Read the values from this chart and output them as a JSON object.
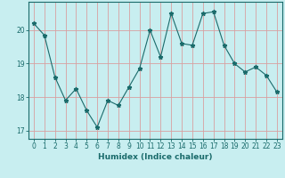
{
  "x": [
    0,
    1,
    2,
    3,
    4,
    5,
    6,
    7,
    8,
    9,
    10,
    11,
    12,
    13,
    14,
    15,
    16,
    17,
    18,
    19,
    20,
    21,
    22,
    23
  ],
  "y": [
    20.2,
    19.85,
    18.6,
    17.9,
    18.25,
    17.6,
    17.1,
    17.9,
    17.75,
    18.3,
    18.85,
    20.0,
    19.2,
    20.5,
    19.6,
    19.55,
    20.5,
    20.55,
    19.55,
    19.0,
    18.75,
    18.9,
    18.65,
    18.15
  ],
  "xlabel": "Humidex (Indice chaleur)",
  "bg_color": "#c8eef0",
  "grid_color": "#d8a0a0",
  "line_color": "#1a6b6b",
  "marker": "*",
  "ylim": [
    16.75,
    20.85
  ],
  "xlim": [
    -0.5,
    23.5
  ],
  "yticks": [
    17,
    18,
    19,
    20
  ],
  "xticks": [
    0,
    1,
    2,
    3,
    4,
    5,
    6,
    7,
    8,
    9,
    10,
    11,
    12,
    13,
    14,
    15,
    16,
    17,
    18,
    19,
    20,
    21,
    22,
    23
  ]
}
